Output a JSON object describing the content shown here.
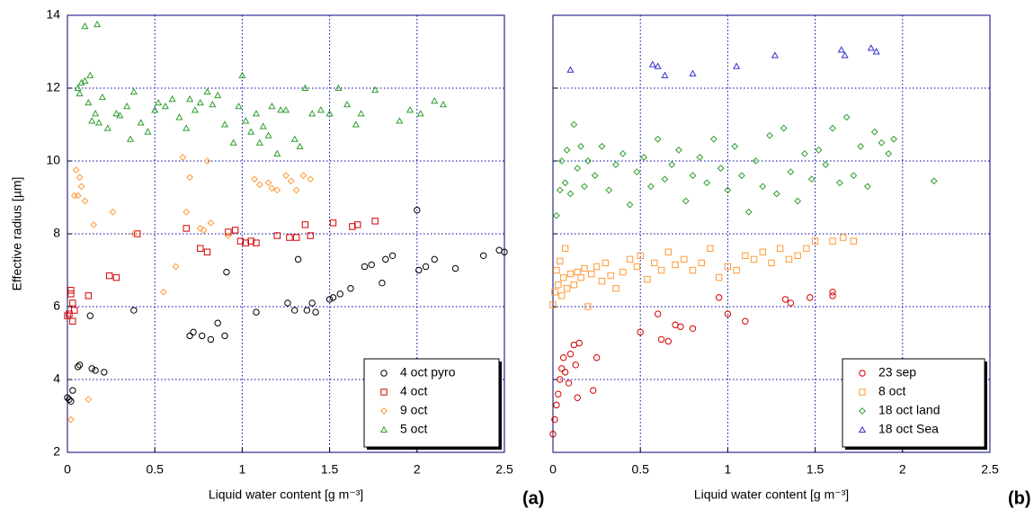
{
  "chart_data": [
    {
      "type": "scatter",
      "panel_label": "(a)",
      "xlabel": "Liquid water content [g m⁻³]",
      "ylabel": "Effective radius [µm]",
      "xlim": [
        0,
        2.5
      ],
      "ylim": [
        2,
        14
      ],
      "xticks": [
        0,
        0.5,
        1,
        1.5,
        2,
        2.5
      ],
      "yticks": [
        2,
        4,
        6,
        8,
        10,
        12,
        14
      ],
      "ytick_labels": true,
      "grid": true,
      "legend": "lower right",
      "series": [
        {
          "name": "4 oct pyro",
          "color": "#000000",
          "marker": "circle",
          "x": [
            0,
            0.01,
            0.02,
            0.03,
            0.06,
            0.07,
            0.14,
            0.16,
            0.21,
            0.13,
            0.38,
            0.7,
            0.72,
            0.77,
            0.82,
            0.86,
            0.9,
            0.91,
            1.08,
            1.26,
            1.3,
            1.32,
            1.37,
            1.4,
            1.42,
            1.5,
            1.52,
            1.56,
            1.62,
            1.7,
            1.74,
            1.8,
            1.82,
            1.86,
            2.0,
            2.01,
            2.05,
            2.1,
            2.22,
            2.38,
            2.47,
            2.5
          ],
          "y": [
            3.5,
            3.45,
            3.4,
            3.7,
            4.35,
            4.4,
            4.3,
            4.25,
            4.2,
            5.75,
            5.9,
            5.2,
            5.3,
            5.2,
            5.1,
            5.55,
            5.2,
            6.95,
            5.85,
            6.1,
            5.9,
            7.3,
            5.9,
            6.1,
            5.85,
            6.2,
            6.25,
            6.35,
            6.5,
            7.1,
            7.15,
            6.65,
            7.3,
            7.4,
            8.65,
            7.0,
            7.1,
            7.3,
            7.05,
            7.4,
            7.55,
            7.5
          ]
        },
        {
          "name": "4 oct",
          "color": "#d40000",
          "marker": "square",
          "x": [
            0,
            0.01,
            0.02,
            0.02,
            0.03,
            0.03,
            0.04,
            0.12,
            0.24,
            0.28,
            0.4,
            0.68,
            0.76,
            0.8,
            0.92,
            0.96,
            0.99,
            1.02,
            1.05,
            1.08,
            1.2,
            1.27,
            1.31,
            1.36,
            1.39,
            1.52,
            1.63,
            1.66,
            1.76
          ],
          "y": [
            5.75,
            5.8,
            6.45,
            6.35,
            6.1,
            5.6,
            5.9,
            6.3,
            6.85,
            6.8,
            8.0,
            8.15,
            7.6,
            7.5,
            8.05,
            8.1,
            7.8,
            7.75,
            7.8,
            7.75,
            7.95,
            7.9,
            7.9,
            8.25,
            7.95,
            8.3,
            8.2,
            8.25,
            8.35
          ]
        },
        {
          "name": "9 oct",
          "color": "#ff9933",
          "marker": "diamond",
          "x": [
            0.02,
            0.04,
            0.05,
            0.06,
            0.07,
            0.08,
            0.1,
            0.12,
            0.15,
            0.26,
            0.38,
            0.55,
            0.62,
            0.66,
            0.68,
            0.7,
            0.76,
            0.78,
            0.8,
            0.82,
            0.92,
            1.07,
            1.1,
            1.15,
            1.17,
            1.2,
            1.25,
            1.28,
            1.31,
            1.35,
            1.39
          ],
          "y": [
            2.9,
            9.05,
            9.75,
            9.05,
            9.55,
            9.3,
            8.9,
            3.45,
            8.25,
            8.6,
            8.0,
            6.4,
            7.1,
            10.1,
            8.6,
            9.55,
            8.15,
            8.1,
            10.0,
            8.3,
            7.95,
            9.5,
            9.35,
            9.4,
            9.25,
            9.2,
            9.6,
            9.45,
            9.2,
            9.6,
            9.5
          ]
        },
        {
          "name": "5 oct",
          "color": "#2e9e2e",
          "marker": "triangle",
          "x": [
            0.1,
            0.17,
            0.06,
            0.08,
            0.1,
            0.13,
            0.07,
            0.12,
            0.14,
            0.16,
            0.18,
            0.2,
            0.23,
            0.28,
            0.3,
            0.34,
            0.36,
            0.38,
            0.42,
            0.46,
            0.5,
            0.52,
            0.56,
            0.6,
            0.64,
            0.68,
            0.7,
            0.73,
            0.76,
            0.8,
            0.83,
            0.86,
            0.9,
            0.95,
            0.98,
            1.0,
            1.02,
            1.05,
            1.08,
            1.1,
            1.12,
            1.15,
            1.17,
            1.2,
            1.22,
            1.25,
            1.3,
            1.33,
            1.36,
            1.4,
            1.45,
            1.5,
            1.55,
            1.6,
            1.65,
            1.68,
            1.76,
            1.9,
            1.96,
            2.02,
            2.1,
            2.15
          ],
          "y": [
            13.7,
            13.75,
            12.0,
            12.15,
            12.2,
            12.35,
            11.85,
            11.6,
            11.1,
            11.3,
            11.05,
            11.75,
            10.9,
            11.3,
            11.25,
            11.5,
            10.6,
            11.9,
            11.05,
            10.8,
            11.4,
            11.6,
            11.5,
            11.7,
            11.2,
            10.9,
            11.7,
            11.4,
            11.6,
            11.9,
            11.55,
            11.8,
            11.0,
            10.5,
            11.5,
            12.35,
            11.1,
            10.8,
            11.3,
            10.5,
            10.95,
            10.7,
            11.5,
            10.2,
            11.4,
            11.4,
            10.6,
            10.4,
            12.0,
            11.3,
            11.4,
            11.3,
            12.0,
            11.55,
            11.0,
            11.3,
            11.95,
            11.1,
            11.4,
            11.3,
            11.65,
            11.55
          ]
        }
      ]
    },
    {
      "type": "scatter",
      "panel_label": "(b)",
      "xlabel": "Liquid water content [g m⁻³]",
      "xlim": [
        0,
        2.5
      ],
      "ylim": [
        2,
        14
      ],
      "xticks": [
        0,
        0.5,
        1,
        1.5,
        2,
        2.5
      ],
      "yticks": [
        2,
        4,
        6,
        8,
        10,
        12,
        14
      ],
      "ytick_labels": false,
      "grid": true,
      "legend": "lower right",
      "series": [
        {
          "name": "23 sep",
          "color": "#d40000",
          "marker": "circle",
          "x": [
            0,
            0.01,
            0.02,
            0.03,
            0.04,
            0.05,
            0.06,
            0.07,
            0.09,
            0.1,
            0.12,
            0.13,
            0.14,
            0.15,
            0.25,
            0.23,
            0.5,
            0.6,
            0.62,
            0.66,
            0.7,
            0.73,
            0.8,
            0.95,
            1.0,
            1.1,
            1.33,
            1.36,
            1.47,
            1.6,
            1.6
          ],
          "y": [
            2.5,
            2.9,
            3.3,
            3.6,
            4.0,
            4.3,
            4.6,
            4.2,
            3.9,
            4.7,
            4.95,
            4.4,
            3.5,
            5.0,
            4.6,
            3.7,
            5.3,
            5.8,
            5.1,
            5.05,
            5.5,
            5.45,
            5.4,
            6.25,
            5.8,
            5.6,
            6.2,
            6.1,
            6.25,
            6.4,
            6.3
          ]
        },
        {
          "name": "8 oct",
          "color": "#ff9933",
          "marker": "square",
          "x": [
            0,
            0.01,
            0.02,
            0.03,
            0.04,
            0.05,
            0.06,
            0.07,
            0.08,
            0.1,
            0.12,
            0.14,
            0.16,
            0.18,
            0.2,
            0.22,
            0.25,
            0.28,
            0.3,
            0.33,
            0.36,
            0.4,
            0.44,
            0.48,
            0.5,
            0.54,
            0.58,
            0.62,
            0.66,
            0.7,
            0.75,
            0.8,
            0.85,
            0.9,
            0.95,
            1.0,
            1.05,
            1.1,
            1.15,
            1.2,
            1.25,
            1.3,
            1.35,
            1.4,
            1.45,
            1.5,
            1.6,
            1.66,
            1.72
          ],
          "y": [
            6.05,
            6.4,
            7.0,
            6.6,
            7.25,
            6.3,
            6.8,
            7.6,
            6.5,
            6.9,
            6.6,
            6.95,
            6.8,
            7.05,
            6.0,
            6.9,
            7.1,
            6.7,
            7.2,
            6.85,
            6.5,
            6.95,
            7.3,
            7.1,
            7.4,
            6.75,
            7.2,
            7.0,
            7.5,
            7.15,
            7.3,
            7.0,
            7.2,
            7.6,
            6.8,
            7.1,
            7.0,
            7.4,
            7.3,
            7.5,
            7.2,
            7.6,
            7.3,
            7.4,
            7.6,
            7.8,
            7.8,
            7.9,
            7.8
          ]
        },
        {
          "name": "18 oct land",
          "color": "#2e9e2e",
          "marker": "diamond",
          "x": [
            0.02,
            0.04,
            0.05,
            0.07,
            0.08,
            0.1,
            0.12,
            0.14,
            0.16,
            0.18,
            0.2,
            0.24,
            0.28,
            0.32,
            0.36,
            0.4,
            0.44,
            0.48,
            0.52,
            0.56,
            0.6,
            0.64,
            0.68,
            0.72,
            0.76,
            0.8,
            0.84,
            0.88,
            0.92,
            0.96,
            1.0,
            1.04,
            1.08,
            1.12,
            1.16,
            1.2,
            1.24,
            1.28,
            1.32,
            1.36,
            1.4,
            1.44,
            1.48,
            1.52,
            1.56,
            1.6,
            1.64,
            1.68,
            1.72,
            1.76,
            1.8,
            1.84,
            1.88,
            1.92,
            1.95,
            2.18
          ],
          "y": [
            8.5,
            9.2,
            10.0,
            9.4,
            10.3,
            9.1,
            11.0,
            9.8,
            10.4,
            9.3,
            10.0,
            9.6,
            10.4,
            9.2,
            9.9,
            10.2,
            8.8,
            9.7,
            10.1,
            9.3,
            10.6,
            9.5,
            9.9,
            10.3,
            8.9,
            9.6,
            10.1,
            9.4,
            10.6,
            9.8,
            9.2,
            10.4,
            9.6,
            8.6,
            10.0,
            9.3,
            10.7,
            9.1,
            10.9,
            9.7,
            8.9,
            10.2,
            9.5,
            10.3,
            9.9,
            10.9,
            9.4,
            11.2,
            9.6,
            10.4,
            9.3,
            10.8,
            10.5,
            10.2,
            10.6,
            9.45
          ]
        },
        {
          "name": "18 oct Sea",
          "color": "#3333cc",
          "marker": "triangle",
          "x": [
            0.1,
            0.57,
            0.6,
            0.64,
            0.8,
            1.05,
            1.27,
            1.65,
            1.67,
            1.82,
            1.85
          ],
          "y": [
            12.5,
            12.65,
            12.6,
            12.35,
            12.4,
            12.6,
            12.9,
            13.05,
            12.9,
            13.1,
            13.0
          ]
        }
      ]
    }
  ]
}
